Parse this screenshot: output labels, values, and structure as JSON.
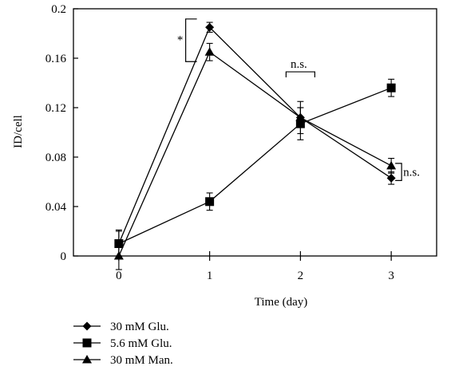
{
  "chart_data": {
    "type": "line",
    "xlabel": "Time (day)",
    "ylabel": "ID/cell",
    "x": [
      0,
      1,
      2,
      3
    ],
    "xticks": [
      "0",
      "1",
      "2",
      "3"
    ],
    "xlim": [
      -0.5,
      3.5
    ],
    "ylim": [
      0,
      0.2
    ],
    "yticks": [
      "0",
      "0.04",
      "0.08",
      "0.12",
      "0.16",
      "0.2"
    ],
    "grid": false,
    "legend_position": "bottom-left",
    "series": [
      {
        "name": "30 mM Glu.",
        "marker": "diamond",
        "values": [
          0.01,
          0.185,
          0.112,
          0.063
        ],
        "errors": [
          0.01,
          0.004,
          0.008,
          0.005
        ]
      },
      {
        "name": "5.6 mM Glu.",
        "marker": "square",
        "values": [
          0.01,
          0.044,
          0.107,
          0.136
        ],
        "errors": [
          0.011,
          0.007,
          0.013,
          0.007
        ]
      },
      {
        "name": "30 mM Man.",
        "marker": "triangle",
        "values": [
          0.0,
          0.165,
          0.112,
          0.073
        ],
        "errors": [
          0.011,
          0.007,
          0.013,
          0.006
        ]
      }
    ],
    "annotations": [
      {
        "text": "*",
        "x": 1,
        "type": "bracket-left"
      },
      {
        "text": "n.s.",
        "x": 2,
        "type": "bracket-top"
      },
      {
        "text": "n.s.",
        "x": 3,
        "type": "bracket-right"
      }
    ]
  }
}
